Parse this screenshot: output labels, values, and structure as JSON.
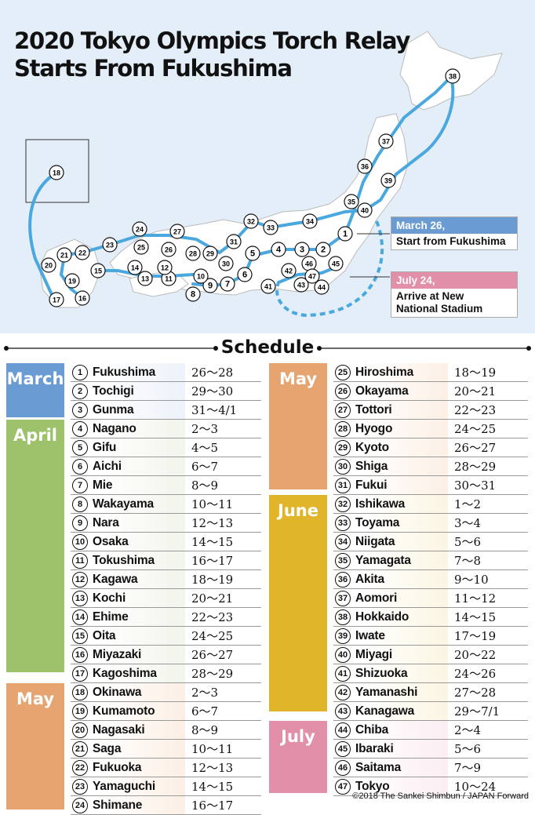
{
  "title": {
    "line1": "2020 Tokyo Olympics Torch Relay",
    "line2": "Starts From Fukushima"
  },
  "callouts": {
    "start": {
      "head": "March 26,",
      "body": "Start from Fukushima"
    },
    "arrive": {
      "head": "July 24,",
      "body1": "Arrive at New",
      "body2": "National Stadium"
    }
  },
  "schedule_title": "Schedule",
  "colors": {
    "march": "#6a9bd3",
    "april": "#9dc26b",
    "may": "#e6a470",
    "june": "#e0b52a",
    "july": "#e28fa9",
    "route": "#4aa8df",
    "tint_march": "#dde7f5",
    "tint_april": "#e6ecd9",
    "tint_may": "#f9e1cc",
    "tint_june": "#f7ecc8",
    "tint_july": "#f7dde4"
  },
  "map_markers": [
    "1",
    "2",
    "3",
    "4",
    "5",
    "6",
    "7",
    "8",
    "9",
    "10",
    "11",
    "12",
    "13",
    "14",
    "15",
    "16",
    "17",
    "18",
    "19",
    "20",
    "21",
    "22",
    "23",
    "24",
    "25",
    "26",
    "27",
    "28",
    "29",
    "30",
    "31",
    "32",
    "33",
    "34",
    "35",
    "36",
    "37",
    "38",
    "39",
    "40",
    "41",
    "42",
    "43",
    "44",
    "45",
    "46",
    "47"
  ],
  "groups_left": [
    {
      "month": "March",
      "color_key": "march",
      "rows": [
        {
          "num": "1",
          "pref": "Fukushima",
          "dates": "26〜28"
        },
        {
          "num": "2",
          "pref": "Tochigi",
          "dates": "29〜30"
        },
        {
          "num": "3",
          "pref": "Gunma",
          "dates": "31〜4/1"
        }
      ]
    },
    {
      "month": "April",
      "color_key": "april",
      "rows": [
        {
          "num": "4",
          "pref": "Nagano",
          "dates": "2〜3"
        },
        {
          "num": "5",
          "pref": "Gifu",
          "dates": "4〜5"
        },
        {
          "num": "6",
          "pref": "Aichi",
          "dates": "6〜7"
        },
        {
          "num": "7",
          "pref": "Mie",
          "dates": "8〜9"
        },
        {
          "num": "8",
          "pref": "Wakayama",
          "dates": "10〜11"
        },
        {
          "num": "9",
          "pref": "Nara",
          "dates": "12〜13"
        },
        {
          "num": "10",
          "pref": "Osaka",
          "dates": "14〜15"
        },
        {
          "num": "11",
          "pref": "Tokushima",
          "dates": "16〜17"
        },
        {
          "num": "12",
          "pref": "Kagawa",
          "dates": "18〜19"
        },
        {
          "num": "13",
          "pref": "Kochi",
          "dates": "20〜21"
        },
        {
          "num": "14",
          "pref": "Ehime",
          "dates": "22〜23"
        },
        {
          "num": "15",
          "pref": "Oita",
          "dates": "24〜25"
        },
        {
          "num": "16",
          "pref": "Miyazaki",
          "dates": "26〜27"
        },
        {
          "num": "17",
          "pref": "Kagoshima",
          "dates": "28〜29"
        }
      ]
    },
    {
      "month": "May",
      "color_key": "may",
      "rows": [
        {
          "num": "18",
          "pref": "Okinawa",
          "dates": "2〜3"
        },
        {
          "num": "19",
          "pref": "Kumamoto",
          "dates": "6〜7"
        },
        {
          "num": "20",
          "pref": "Nagasaki",
          "dates": "8〜9"
        },
        {
          "num": "21",
          "pref": "Saga",
          "dates": "10〜11"
        },
        {
          "num": "22",
          "pref": "Fukuoka",
          "dates": "12〜13"
        },
        {
          "num": "23",
          "pref": "Yamaguchi",
          "dates": "14〜15"
        },
        {
          "num": "24",
          "pref": "Shimane",
          "dates": "16〜17"
        }
      ]
    }
  ],
  "groups_right": [
    {
      "month": "May",
      "color_key": "may",
      "rows": [
        {
          "num": "25",
          "pref": "Hiroshima",
          "dates": "18〜19"
        },
        {
          "num": "26",
          "pref": "Okayama",
          "dates": "20〜21"
        },
        {
          "num": "27",
          "pref": "Tottori",
          "dates": "22〜23"
        },
        {
          "num": "28",
          "pref": "Hyogo",
          "dates": "24〜25"
        },
        {
          "num": "29",
          "pref": "Kyoto",
          "dates": "26〜27"
        },
        {
          "num": "30",
          "pref": "Shiga",
          "dates": "28〜29"
        },
        {
          "num": "31",
          "pref": "Fukui",
          "dates": "30〜31"
        }
      ]
    },
    {
      "month": "June",
      "color_key": "june",
      "rows": [
        {
          "num": "32",
          "pref": "Ishikawa",
          "dates": "1〜2"
        },
        {
          "num": "33",
          "pref": "Toyama",
          "dates": "3〜4"
        },
        {
          "num": "34",
          "pref": "Niigata",
          "dates": "5〜6"
        },
        {
          "num": "35",
          "pref": "Yamagata",
          "dates": "7〜8"
        },
        {
          "num": "36",
          "pref": "Akita",
          "dates": "9〜10"
        },
        {
          "num": "37",
          "pref": "Aomori",
          "dates": "11〜12"
        },
        {
          "num": "38",
          "pref": "Hokkaido",
          "dates": "14〜15"
        },
        {
          "num": "39",
          "pref": "Iwate",
          "dates": "17〜19"
        },
        {
          "num": "40",
          "pref": "Miyagi",
          "dates": "20〜22"
        },
        {
          "num": "41",
          "pref": "Shizuoka",
          "dates": "24〜26"
        },
        {
          "num": "42",
          "pref": "Yamanashi",
          "dates": "27〜28"
        },
        {
          "num": "43",
          "pref": "Kanagawa",
          "dates": "29〜7/1"
        }
      ]
    },
    {
      "month": "July",
      "color_key": "july",
      "rows": [
        {
          "num": "44",
          "pref": "Chiba",
          "dates": "2〜4"
        },
        {
          "num": "45",
          "pref": "Ibaraki",
          "dates": "5〜6"
        },
        {
          "num": "46",
          "pref": "Saitama",
          "dates": "7〜9"
        },
        {
          "num": "47",
          "pref": "Tokyo",
          "dates": "10〜24"
        }
      ]
    }
  ],
  "copyright": "©2018 The Sankei Shimbun / JAPAN Forward"
}
